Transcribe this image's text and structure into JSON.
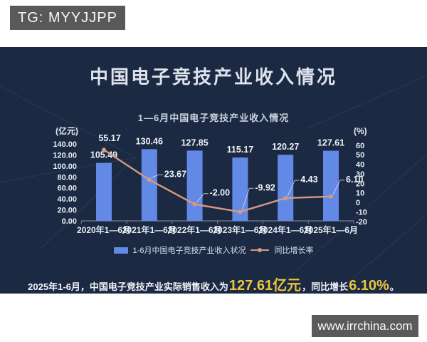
{
  "watermarks": {
    "tg": "TG: MYYJJPP",
    "site": "www.irrchina.com"
  },
  "panel": {
    "title": "中国电子竞技产业收入情况"
  },
  "colors": {
    "panel_bg": "#1c2943",
    "bar": "#6389e6",
    "line": "#d59a82",
    "accent_yellow": "#ecc63e",
    "badge_gray": "#595959",
    "text_light": "#e9edf4"
  },
  "chart_data": {
    "type": "bar+line combo",
    "title": "1—6月中国电子竞技产业收入情况",
    "categories": [
      "2020年1—6月",
      "2021年1—6月",
      "2022年1—6月",
      "2023年1—6月",
      "2024年1—6月",
      "2025年1—6月"
    ],
    "series": [
      {
        "name": "1-6月中国电子竞技产业收入状况",
        "type": "bar",
        "axis": "left",
        "color": "#6389e6",
        "values": [
          105.49,
          130.46,
          127.85,
          115.17,
          120.27,
          127.61
        ],
        "labels": [
          "105.49",
          "130.46",
          "127.85",
          "115.17",
          "120.27",
          "127.61"
        ]
      },
      {
        "name": "同比增长率",
        "type": "line",
        "axis": "right",
        "color": "#d59a82",
        "values": [
          55.17,
          23.67,
          -2.0,
          -9.92,
          4.43,
          6.1
        ],
        "labels": [
          "55.17",
          "23.67",
          "-2.00",
          "-9.92",
          "4.43",
          "6.10"
        ]
      }
    ],
    "left_axis": {
      "label": "(亿元)",
      "min": 0,
      "max": 140,
      "step": 20,
      "decimals": 2
    },
    "right_axis": {
      "label": "(%)",
      "min": -20,
      "max": 60,
      "step": 10,
      "decimals": 0
    },
    "grid": false,
    "legend_position": "bottom"
  },
  "footnote": {
    "lead": "2025年1-6月，中国电子竞技产业实际销售收入为",
    "revenue": "127.61亿元",
    "mid": "，同比增长",
    "growth": "6.10%",
    "tail": "。"
  }
}
